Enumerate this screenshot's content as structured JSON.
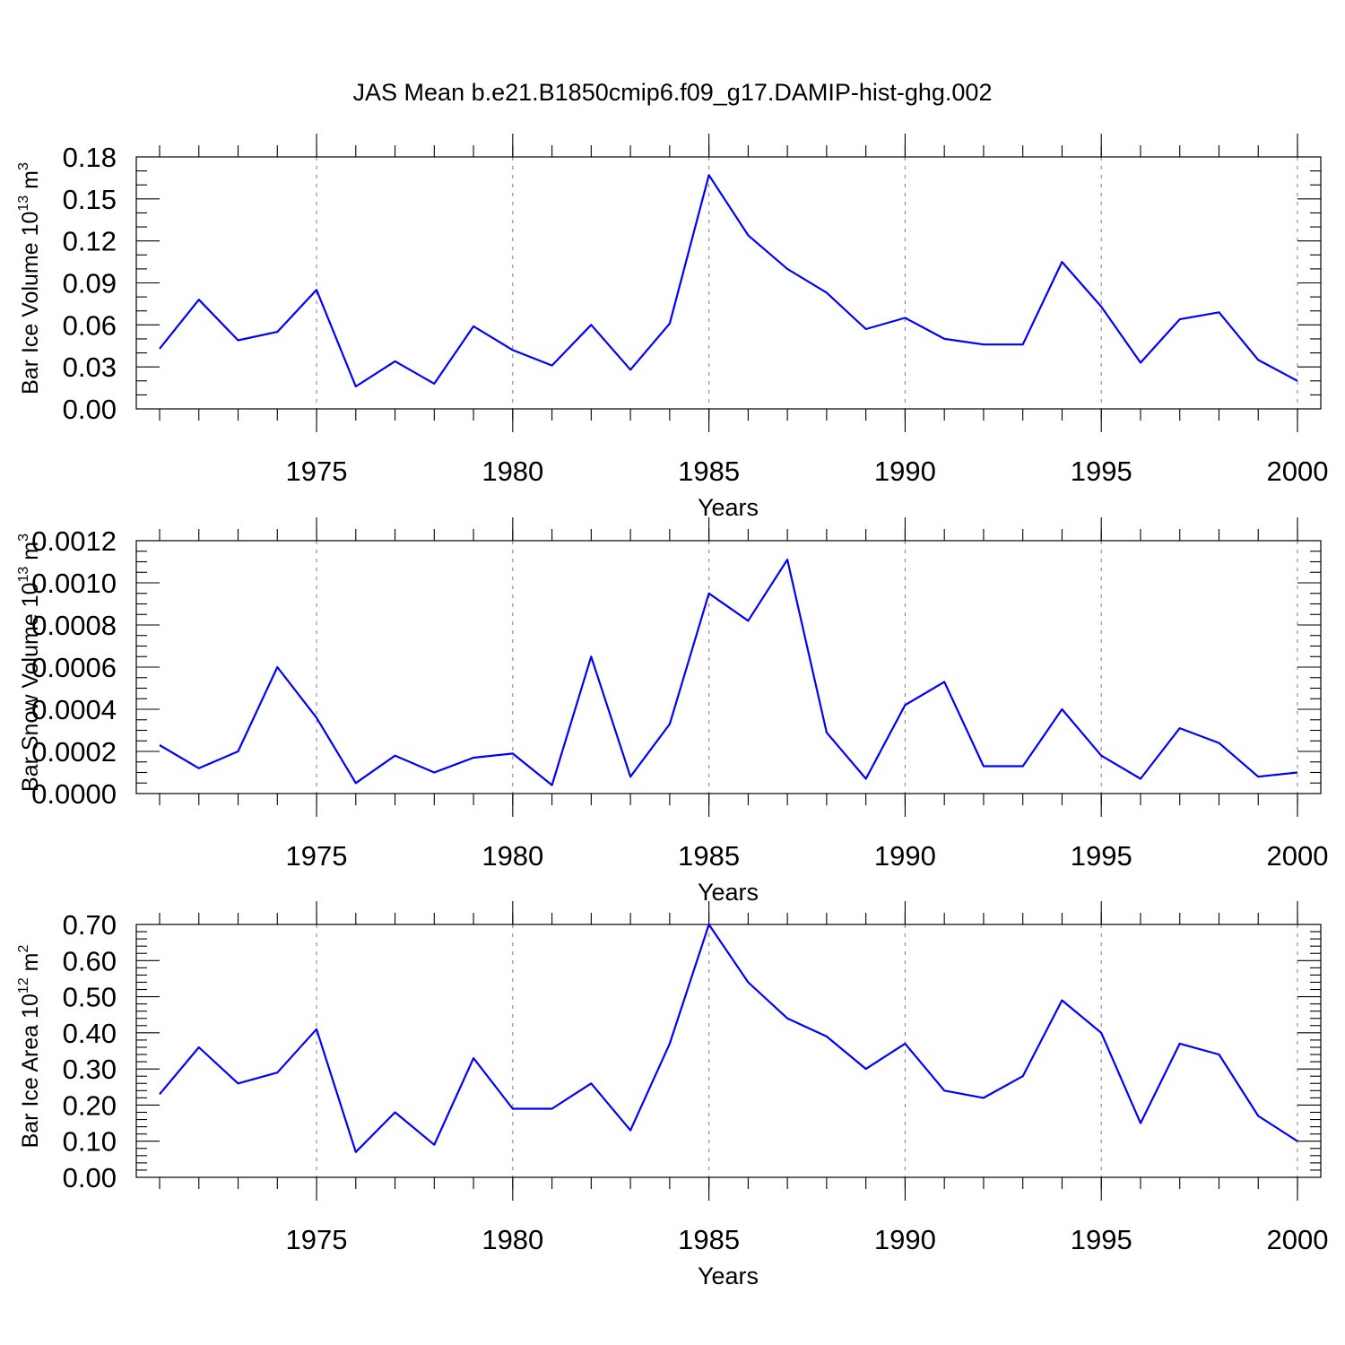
{
  "title": "JAS Mean b.e21.B1850cmip6.f09_g17.DAMIP-hist-ghg.002",
  "line_color": "#0000ff",
  "chart_data": [
    {
      "type": "line",
      "ylabel": "Bar Ice Volume 10",
      "ylabel_exp": "13",
      "ylabel_unit": " m",
      "ylabel_unit_exp": "3",
      "xlabel": "Years",
      "xlim": [
        1971,
        2000
      ],
      "ylim": [
        0,
        0.18
      ],
      "yticks": [
        "0.00",
        "0.03",
        "0.06",
        "0.09",
        "0.12",
        "0.15",
        "0.18"
      ],
      "xticks": [
        "1975",
        "1980",
        "1985",
        "1990",
        "1995",
        "2000"
      ],
      "x": [
        1971,
        1972,
        1973,
        1974,
        1975,
        1976,
        1977,
        1978,
        1979,
        1980,
        1981,
        1982,
        1983,
        1984,
        1985,
        1986,
        1987,
        1988,
        1989,
        1990,
        1991,
        1992,
        1993,
        1994,
        1995,
        1996,
        1997,
        1998,
        1999,
        2000
      ],
      "values": [
        0.043,
        0.078,
        0.049,
        0.055,
        0.085,
        0.016,
        0.034,
        0.018,
        0.059,
        0.042,
        0.031,
        0.06,
        0.028,
        0.061,
        0.167,
        0.124,
        0.1,
        0.083,
        0.057,
        0.065,
        0.05,
        0.046,
        0.046,
        0.105,
        0.073,
        0.033,
        0.064,
        0.069,
        0.035,
        0.02
      ]
    },
    {
      "type": "line",
      "ylabel": "Bar Snow Volume 10",
      "ylabel_exp": "13",
      "ylabel_unit": " m",
      "ylabel_unit_exp": "3",
      "xlabel": "Years",
      "xlim": [
        1971,
        2000
      ],
      "ylim": [
        0,
        0.0012
      ],
      "yticks": [
        "0.0000",
        "0.0002",
        "0.0004",
        "0.0006",
        "0.0008",
        "0.0010",
        "0.0012"
      ],
      "xticks": [
        "1975",
        "1980",
        "1985",
        "1990",
        "1995",
        "2000"
      ],
      "x": [
        1971,
        1972,
        1973,
        1974,
        1975,
        1976,
        1977,
        1978,
        1979,
        1980,
        1981,
        1982,
        1983,
        1984,
        1985,
        1986,
        1987,
        1988,
        1989,
        1990,
        1991,
        1992,
        1993,
        1994,
        1995,
        1996,
        1997,
        1998,
        1999,
        2000
      ],
      "values": [
        0.00023,
        0.00012,
        0.0002,
        0.0006,
        0.00036,
        5e-05,
        0.00018,
        0.0001,
        0.00017,
        0.00019,
        4e-05,
        0.00065,
        8e-05,
        0.00033,
        0.00095,
        0.00082,
        0.00111,
        0.00029,
        7e-05,
        0.00042,
        0.00053,
        0.00013,
        0.00013,
        0.0004,
        0.00018,
        7e-05,
        0.00031,
        0.00024,
        8e-05,
        0.0001
      ]
    },
    {
      "type": "line",
      "ylabel": "Bar Ice Area 10",
      "ylabel_exp": "12",
      "ylabel_unit": " m",
      "ylabel_unit_exp": "2",
      "xlabel": "Years",
      "xlim": [
        1971,
        2000
      ],
      "ylim": [
        0,
        0.7
      ],
      "yticks": [
        "0.00",
        "0.10",
        "0.20",
        "0.30",
        "0.40",
        "0.50",
        "0.60",
        "0.70"
      ],
      "xticks": [
        "1975",
        "1980",
        "1985",
        "1990",
        "1995",
        "2000"
      ],
      "x": [
        1971,
        1972,
        1973,
        1974,
        1975,
        1976,
        1977,
        1978,
        1979,
        1980,
        1981,
        1982,
        1983,
        1984,
        1985,
        1986,
        1987,
        1988,
        1989,
        1990,
        1991,
        1992,
        1993,
        1994,
        1995,
        1996,
        1997,
        1998,
        1999,
        2000
      ],
      "values": [
        0.23,
        0.36,
        0.26,
        0.29,
        0.41,
        0.07,
        0.18,
        0.09,
        0.33,
        0.19,
        0.19,
        0.26,
        0.13,
        0.37,
        0.7,
        0.54,
        0.44,
        0.39,
        0.3,
        0.37,
        0.24,
        0.22,
        0.28,
        0.49,
        0.4,
        0.15,
        0.37,
        0.34,
        0.17,
        0.1
      ]
    }
  ]
}
